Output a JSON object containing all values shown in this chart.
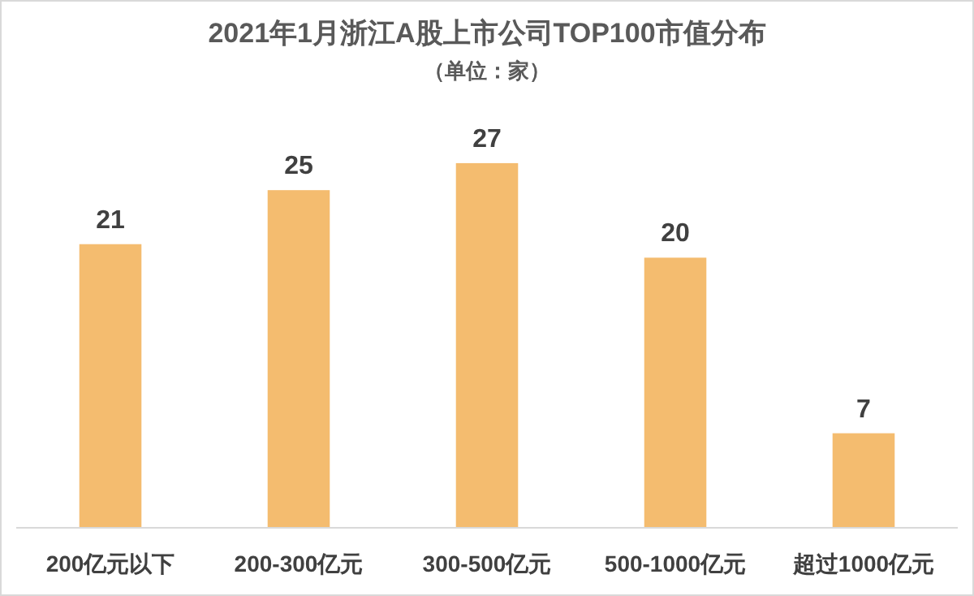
{
  "chart_data": {
    "type": "bar",
    "title": "2021年1月浙江A股上市公司TOP100市值分布",
    "subtitle": "（单位：家）",
    "categories": [
      "200亿元以下",
      "200-300亿元",
      "300-500亿元",
      "500-1000亿元",
      "超过1000亿元"
    ],
    "values": [
      21,
      25,
      27,
      20,
      7
    ],
    "color": "#f4bc6f",
    "data_labels": true
  }
}
